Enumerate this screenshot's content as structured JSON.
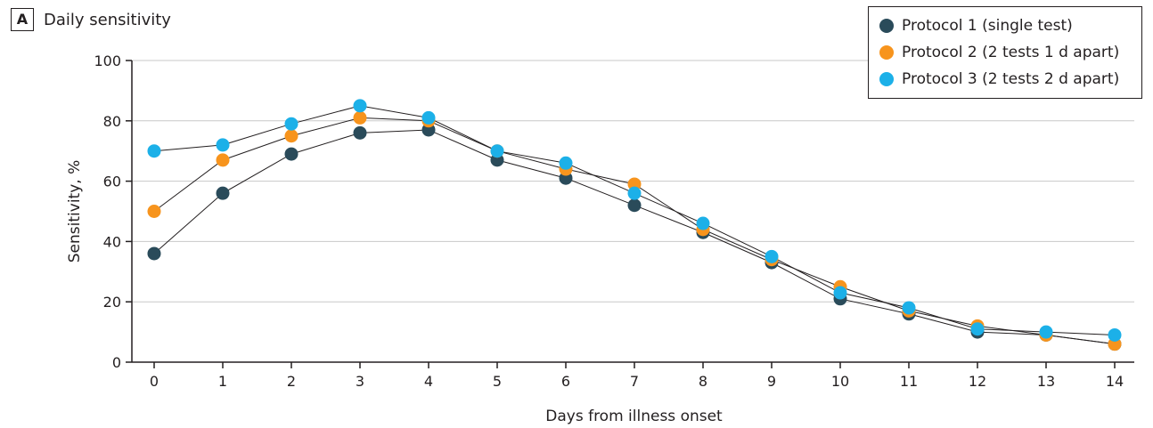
{
  "panel": {
    "letter": "A",
    "title": "Daily sensitivity"
  },
  "chart_data": {
    "type": "line",
    "title": "Daily sensitivity",
    "xlabel": "Days from illness onset",
    "ylabel": "Sensitivity, %",
    "x": [
      0,
      1,
      2,
      3,
      4,
      5,
      6,
      7,
      8,
      9,
      10,
      11,
      12,
      13,
      14
    ],
    "xlim": [
      0,
      14
    ],
    "ylim": [
      0,
      100
    ],
    "yticks": [
      0,
      20,
      40,
      60,
      80,
      100
    ],
    "grid": "horizontal",
    "legend_position": "top-right",
    "markers": true,
    "series": [
      {
        "name": "Protocol 1 (single test)",
        "color": "#2a4b5a",
        "values": [
          36,
          56,
          69,
          76,
          77,
          67,
          61,
          52,
          43,
          33,
          21,
          16,
          10,
          9,
          6
        ]
      },
      {
        "name": "Protocol 2 (2 tests 1 d apart)",
        "color": "#f7941d",
        "values": [
          50,
          67,
          75,
          81,
          80,
          70,
          64,
          59,
          44,
          34,
          25,
          17,
          12,
          9,
          6
        ]
      },
      {
        "name": "Protocol 3 (2 tests 2 d apart)",
        "color": "#1cb0e8",
        "values": [
          70,
          72,
          79,
          85,
          81,
          70,
          66,
          56,
          46,
          35,
          23,
          18,
          11,
          10,
          9
        ]
      }
    ]
  }
}
